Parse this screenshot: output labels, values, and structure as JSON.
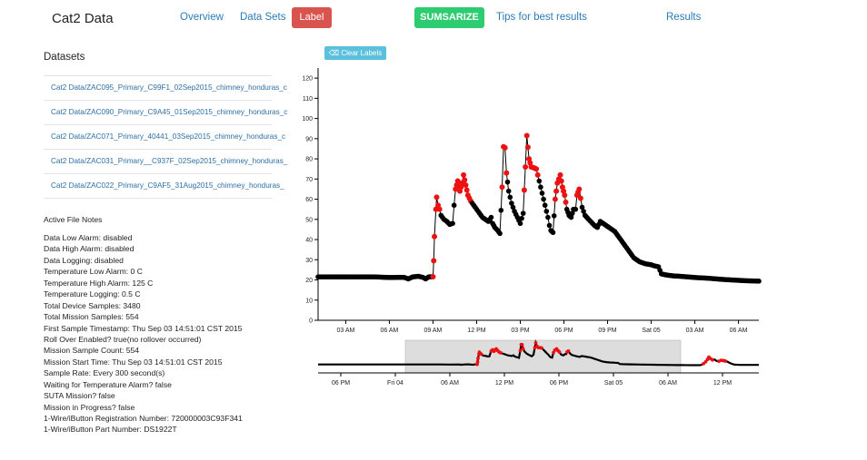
{
  "nav": {
    "brand": "Cat2 Data",
    "links": [
      "Overview",
      "Data Sets",
      "Tips for best results",
      "Results"
    ],
    "label_button": "Label",
    "summarize_button": "SUMSARIZE"
  },
  "sidebar": {
    "title": "Datasets",
    "datasets": [
      "Cat2 Data/ZAC095_Primary_C99F1_02Sep2015_chimney_honduras_c",
      "Cat2 Data/ZAC090_Primary_C9A45_01Sep2015_chimney_honduras_c",
      "Cat2 Data/ZAC071_Primary_40441_03Sep2015_chimney_honduras_c",
      "Cat2 Data/ZAC031_Primary__C937F_02Sep2015_chimney_honduras_",
      "Cat2 Data/ZAC022_Primary_C9AF5_31Aug2015_chimney_honduras_"
    ]
  },
  "notes": {
    "title": "Active File Notes",
    "lines": [
      "Data Low Alarm: disabled",
      "Data High Alarm: disabled",
      "Data Logging: disabled",
      "Temperature Low Alarm: 0 C",
      "Temperature High Alarm: 125 C",
      "Temperature Logging: 0.5 C",
      "Total Device Samples: 3480",
      "Total Mission Samples: 554",
      "First Sample Timestamp: Thu Sep 03 14:51:01 CST 2015",
      "Roll Over Enabled? true(no rollover occurred)",
      "Mission Sample Count: 554",
      "Mission Start Time: Thu Sep 03 14:51:01 CST 2015",
      "Sample Rate: Every 300 second(s)",
      "Waiting for Temperature Alarm? false",
      "SUTA Mission? false",
      "Mission in Progress? false",
      "1-Wire/iButton Registration Number: 720000003C93F341",
      "1-Wire/iButton Part Number: DS1922T"
    ]
  },
  "chart": {
    "clear_labels": "Clear Labels",
    "colors": {
      "unlabeled": "#000000",
      "labeled": "#ee1111",
      "brush": "#dddddd"
    }
  },
  "chart_data": {
    "type": "scatter",
    "title": "",
    "xlabel": "",
    "ylabel": "",
    "x_unit": "hours since 00:00 (Sep 04)",
    "xlim": [
      1.1,
      31.4
    ],
    "ylim": [
      0,
      125
    ],
    "yticks": [
      0,
      10,
      20,
      30,
      40,
      50,
      60,
      70,
      80,
      90,
      100,
      110,
      120
    ],
    "xticks": [
      {
        "x": 3,
        "label": "03 AM"
      },
      {
        "x": 6,
        "label": "06 AM"
      },
      {
        "x": 9,
        "label": "09 AM"
      },
      {
        "x": 12,
        "label": "12 PM"
      },
      {
        "x": 15,
        "label": "03 PM"
      },
      {
        "x": 18,
        "label": "06 PM"
      },
      {
        "x": 21,
        "label": "09 PM"
      },
      {
        "x": 24,
        "label": "Sat 05"
      },
      {
        "x": 27,
        "label": "03 AM"
      },
      {
        "x": 30,
        "label": "06 AM"
      }
    ],
    "series": [
      {
        "name": "temperature",
        "points": [
          [
            1.1,
            21.5
          ],
          [
            3,
            21.5
          ],
          [
            5,
            21.5
          ],
          [
            6,
            21.2
          ],
          [
            7,
            21.3
          ],
          [
            7.3,
            20.5
          ],
          [
            7.6,
            21.5
          ],
          [
            8,
            21.8
          ],
          [
            8.3,
            21.3
          ],
          [
            8.5,
            20.5
          ],
          [
            8.7,
            21.5
          ],
          [
            9,
            21.6
          ],
          [
            9.05,
            29.5
          ],
          [
            9.1,
            41.5
          ],
          [
            9.2,
            55
          ],
          [
            9.25,
            61
          ],
          [
            9.35,
            57
          ],
          [
            9.45,
            55
          ],
          [
            9.55,
            52
          ],
          [
            9.75,
            50
          ],
          [
            9.95,
            49
          ],
          [
            10.15,
            47.5
          ],
          [
            10.35,
            48
          ],
          [
            10.45,
            57
          ],
          [
            10.55,
            65
          ],
          [
            10.7,
            69
          ],
          [
            10.85,
            64
          ],
          [
            11.0,
            68
          ],
          [
            11.1,
            72
          ],
          [
            11.25,
            67
          ],
          [
            11.4,
            62
          ],
          [
            11.6,
            59
          ],
          [
            11.8,
            57
          ],
          [
            12.0,
            55
          ],
          [
            12.2,
            53
          ],
          [
            12.4,
            51
          ],
          [
            12.6,
            50
          ],
          [
            12.8,
            49
          ],
          [
            13.0,
            51
          ],
          [
            13.1,
            48
          ],
          [
            13.25,
            46
          ],
          [
            13.45,
            44.5
          ],
          [
            13.6,
            43
          ],
          [
            13.75,
            66
          ],
          [
            13.85,
            86
          ],
          [
            13.95,
            85.5
          ],
          [
            14.05,
            73
          ],
          [
            14.2,
            64
          ],
          [
            14.4,
            58
          ],
          [
            14.6,
            54
          ],
          [
            14.8,
            51
          ],
          [
            15.0,
            48
          ],
          [
            15.2,
            53
          ],
          [
            15.35,
            76
          ],
          [
            15.45,
            91.5
          ],
          [
            15.6,
            80
          ],
          [
            15.75,
            76
          ],
          [
            15.95,
            75.5
          ],
          [
            16.1,
            75
          ],
          [
            16.3,
            69
          ],
          [
            16.5,
            63
          ],
          [
            16.7,
            57
          ],
          [
            16.9,
            51
          ],
          [
            17.0,
            47
          ],
          [
            17.1,
            44.5
          ],
          [
            17.25,
            43.5
          ],
          [
            17.4,
            60
          ],
          [
            17.55,
            68
          ],
          [
            17.75,
            72
          ],
          [
            17.9,
            66
          ],
          [
            18.05,
            62
          ],
          [
            18.2,
            55
          ],
          [
            18.35,
            52
          ],
          [
            18.5,
            51
          ],
          [
            18.65,
            55
          ],
          [
            18.8,
            55
          ],
          [
            18.9,
            62
          ],
          [
            19.05,
            65
          ],
          [
            19.25,
            56
          ],
          [
            19.45,
            52
          ],
          [
            19.7,
            50
          ],
          [
            19.9,
            48.5
          ],
          [
            20.1,
            47
          ],
          [
            20.3,
            46
          ],
          [
            20.5,
            49
          ],
          [
            20.7,
            48
          ],
          [
            20.9,
            47
          ],
          [
            21.1,
            46
          ],
          [
            21.3,
            45
          ],
          [
            21.5,
            44
          ],
          [
            21.7,
            42
          ],
          [
            21.9,
            40
          ],
          [
            22.1,
            38
          ],
          [
            22.3,
            36
          ],
          [
            22.5,
            34
          ],
          [
            22.8,
            31
          ],
          [
            23.2,
            29
          ],
          [
            23.6,
            28
          ],
          [
            24.0,
            27.5
          ],
          [
            24.2,
            27
          ],
          [
            24.5,
            26.5
          ],
          [
            24.7,
            23
          ],
          [
            25,
            22.5
          ],
          [
            25.5,
            22
          ],
          [
            26,
            21.8
          ],
          [
            26.5,
            21.5
          ],
          [
            27,
            21.2
          ],
          [
            27.5,
            21
          ],
          [
            28,
            20.8
          ],
          [
            28.5,
            20.5
          ],
          [
            29,
            20.2
          ],
          [
            29.5,
            20
          ],
          [
            30,
            19.8
          ],
          [
            30.5,
            19.6
          ],
          [
            31,
            19.5
          ],
          [
            31.4,
            19.4
          ]
        ]
      }
    ],
    "labeled_ranges": [
      [
        9.0,
        9.45
      ],
      [
        10.5,
        11.6
      ],
      [
        13.7,
        14.05
      ],
      [
        15.25,
        16.25
      ],
      [
        17.4,
        18.15
      ],
      [
        18.85,
        19.2
      ]
    ],
    "overview": {
      "xlim": [
        -8.5,
        40
      ],
      "brush": [
        1.1,
        31.4
      ],
      "xticks": [
        {
          "x": -6,
          "label": "06 PM"
        },
        {
          "x": 0,
          "label": "Fri 04"
        },
        {
          "x": 6,
          "label": "06 AM"
        },
        {
          "x": 12,
          "label": "12 PM"
        },
        {
          "x": 18,
          "label": "06 PM"
        },
        {
          "x": 24,
          "label": "Sat 05"
        },
        {
          "x": 30,
          "label": "06 AM"
        },
        {
          "x": 36,
          "label": "12 PM"
        }
      ],
      "second_segment": [
        [
          31.6,
          19.4
        ],
        [
          32,
          19.3
        ],
        [
          33,
          19.2
        ],
        [
          33.6,
          19.3
        ],
        [
          33.9,
          24
        ],
        [
          34.15,
          30
        ],
        [
          34.35,
          38
        ],
        [
          34.5,
          45
        ],
        [
          34.7,
          40
        ],
        [
          34.9,
          36
        ],
        [
          35.1,
          38
        ],
        [
          35.35,
          33
        ],
        [
          35.6,
          32
        ],
        [
          35.85,
          35
        ],
        [
          36.1,
          34
        ],
        [
          36.5,
          31
        ],
        [
          36.9,
          25
        ],
        [
          37.3,
          21
        ],
        [
          38,
          20
        ],
        [
          39,
          20
        ],
        [
          40,
          20
        ]
      ],
      "second_labeled_ranges": [
        [
          33.85,
          35.0
        ],
        [
          35.5,
          36.3
        ]
      ]
    }
  }
}
